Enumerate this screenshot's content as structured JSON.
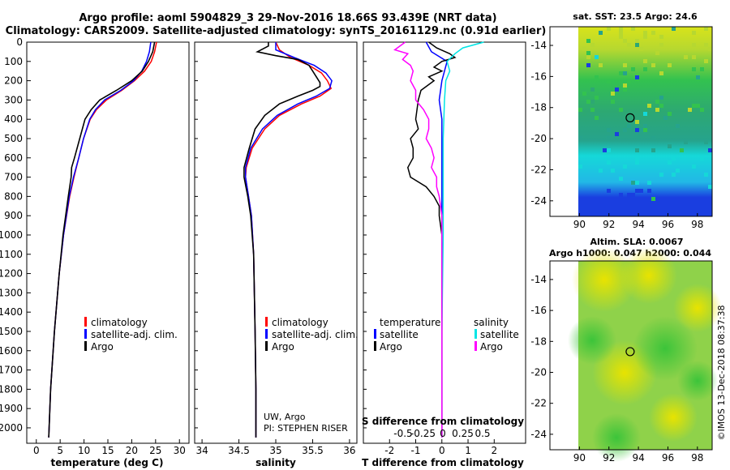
{
  "header": {
    "title_line1": "Argo profile: aoml 5904829_3 29-Nov-2016 18.66S 93.439E (NRT data)",
    "title_line2": "Climatology: CARS2009. Satellite-adjusted climatology: synTS_20161129.nc (0.91d earlier)"
  },
  "footer": {
    "credit": "UW, Argo",
    "pi": "PI: STEPHEN RISER",
    "stamp": "©IMOS 13-Dec-2018 08:37:38"
  },
  "colors": {
    "climatology": "#ff0000",
    "satellite": "#0000ff",
    "argo": "#000000",
    "sat_salinity": "#00e5e5",
    "argo_salinity": "#ff00ff"
  },
  "depth_axis": {
    "ticks": [
      0,
      100,
      200,
      300,
      400,
      500,
      600,
      700,
      800,
      900,
      1000,
      1100,
      1200,
      1300,
      1400,
      1500,
      1600,
      1700,
      1800,
      1900,
      2000
    ]
  },
  "chart_data": [
    {
      "type": "line",
      "id": "temperature",
      "xlabel": "temperature (deg C)",
      "ylabel": "depth (dbar)",
      "xlim": [
        -2,
        32
      ],
      "ylim": [
        2080,
        0
      ],
      "xticks": [
        0,
        5,
        10,
        15,
        20,
        25,
        30
      ],
      "series": [
        {
          "name": "climatology",
          "color": "#ff0000",
          "depth": [
            0,
            50,
            100,
            150,
            200,
            250,
            300,
            350,
            400,
            500,
            600,
            700,
            800,
            1000,
            1200,
            1500,
            1800,
            2050
          ],
          "values": [
            25.2,
            24.8,
            24.1,
            22.7,
            20.6,
            17.9,
            14.7,
            12.6,
            11.3,
            9.9,
            8.9,
            7.9,
            7.0,
            5.7,
            4.8,
            3.8,
            3.0,
            2.6
          ]
        },
        {
          "name": "satellite-adj. clim.",
          "color": "#0000ff",
          "depth": [
            0,
            50,
            100,
            150,
            200,
            250,
            300,
            350,
            400,
            500,
            600,
            700,
            800,
            1000,
            1200,
            1500,
            1800,
            2050
          ],
          "values": [
            24.0,
            23.7,
            23.1,
            22.1,
            20.4,
            17.7,
            14.3,
            12.4,
            11.2,
            9.9,
            8.9,
            7.8,
            6.9,
            5.7,
            4.8,
            3.8,
            3.0,
            2.6
          ]
        },
        {
          "name": "Argo",
          "color": "#000000",
          "depth": [
            0,
            50,
            100,
            150,
            200,
            250,
            300,
            350,
            400,
            500,
            600,
            650,
            700,
            800,
            1000,
            1200,
            1500,
            1800,
            2050
          ],
          "values": [
            24.8,
            24.4,
            23.5,
            22.2,
            20.0,
            16.8,
            13.3,
            11.5,
            10.2,
            9.1,
            8.0,
            7.4,
            7.3,
            6.7,
            5.6,
            4.8,
            3.8,
            3.0,
            2.6
          ]
        }
      ],
      "legend": [
        "climatology",
        "satellite-adj. clim.",
        "Argo"
      ]
    },
    {
      "type": "line",
      "id": "salinity",
      "xlabel": "salinity",
      "ylabel": "depth (dbar)",
      "xlim": [
        33.9,
        36.1
      ],
      "ylim": [
        2080,
        0
      ],
      "xticks": [
        34,
        34.5,
        35,
        35.5,
        36
      ],
      "series": [
        {
          "name": "climatology",
          "color": "#ff0000",
          "depth": [
            0,
            40,
            80,
            120,
            160,
            200,
            240,
            280,
            320,
            380,
            450,
            550,
            650,
            700,
            800,
            900,
            1100,
            1500,
            1800,
            2050
          ],
          "values": [
            35.0,
            35.05,
            35.2,
            35.45,
            35.62,
            35.7,
            35.75,
            35.6,
            35.35,
            35.05,
            34.85,
            34.68,
            34.6,
            34.59,
            34.63,
            34.67,
            34.7,
            34.72,
            34.73,
            34.73
          ]
        },
        {
          "name": "satellite-adj. clim.",
          "color": "#0000ff",
          "depth": [
            0,
            40,
            80,
            120,
            160,
            200,
            240,
            280,
            320,
            380,
            450,
            550,
            650,
            700,
            800,
            900,
            1100,
            1500,
            1800,
            2050
          ],
          "values": [
            35.0,
            35.0,
            35.25,
            35.52,
            35.68,
            35.76,
            35.73,
            35.55,
            35.3,
            35.02,
            34.82,
            34.66,
            34.59,
            34.59,
            34.63,
            34.67,
            34.7,
            34.72,
            34.73,
            34.73
          ]
        },
        {
          "name": "Argo",
          "color": "#000000",
          "depth": [
            0,
            20,
            50,
            70,
            90,
            120,
            150,
            180,
            210,
            230,
            250,
            280,
            320,
            380,
            450,
            550,
            650,
            700,
            720,
            800,
            900,
            1100,
            1500,
            1800,
            2050
          ],
          "values": [
            34.9,
            34.9,
            34.75,
            35.0,
            35.3,
            35.45,
            35.5,
            35.55,
            35.6,
            35.6,
            35.5,
            35.3,
            35.05,
            34.85,
            34.72,
            34.64,
            34.57,
            34.57,
            34.58,
            34.62,
            34.66,
            34.7,
            34.72,
            34.73,
            34.73
          ]
        }
      ],
      "legend": [
        "climatology",
        "satellite-adj. clim.",
        "Argo"
      ]
    },
    {
      "type": "line",
      "id": "difference",
      "xlabel": "T difference from climatology",
      "xlabel2": "S difference from climatology",
      "ylabel": "depth (dbar)",
      "xlim": [
        -3,
        3.2
      ],
      "ylim": [
        2080,
        0
      ],
      "xticks": [
        -2,
        -1,
        0,
        1,
        2
      ],
      "xticks_s": [
        -0.5,
        -0.25,
        0,
        0.25,
        0.5
      ],
      "series": [
        {
          "name": "temperature satellite",
          "color": "#0000ff",
          "depth": [
            0,
            50,
            100,
            150,
            200,
            300,
            400,
            600,
            800,
            1000,
            1500,
            2050
          ],
          "values": [
            -0.6,
            -0.4,
            0.2,
            0.1,
            0.0,
            -0.1,
            0.0,
            0.0,
            0.0,
            0.0,
            0.0,
            0.0
          ]
        },
        {
          "name": "temperature Argo",
          "color": "#000000",
          "depth": [
            0,
            30,
            60,
            80,
            100,
            130,
            150,
            180,
            200,
            250,
            300,
            400,
            450,
            500,
            550,
            600,
            650,
            700,
            750,
            800,
            850,
            900,
            1000,
            1500,
            2050
          ],
          "values": [
            -0.5,
            -0.2,
            0.3,
            0.5,
            0.0,
            -0.3,
            0.0,
            -0.5,
            -0.3,
            -0.8,
            -0.9,
            -1.0,
            -0.9,
            -1.2,
            -1.1,
            -1.1,
            -1.3,
            -1.2,
            -0.6,
            -0.3,
            -0.1,
            -0.1,
            0.0,
            0.0,
            0.0
          ]
        },
        {
          "name": "salinity satellite",
          "color": "#00e5e5",
          "depth": [
            0,
            30,
            60,
            100,
            150,
            200,
            300,
            500,
            800,
            1000,
            1500,
            2050
          ],
          "values": [
            1.6,
            0.8,
            0.5,
            0.2,
            0.3,
            0.15,
            0.1,
            0.05,
            0.05,
            0.05,
            0.0,
            0.0
          ]
        },
        {
          "name": "salinity Argo",
          "color": "#ff00ff",
          "depth": [
            0,
            40,
            60,
            90,
            120,
            150,
            200,
            250,
            300,
            350,
            400,
            450,
            500,
            550,
            600,
            650,
            700,
            750,
            800,
            900,
            1000,
            1500,
            2050
          ],
          "values": [
            -1.4,
            -1.8,
            -1.3,
            -1.5,
            -1.2,
            -1.1,
            -1.2,
            -1.0,
            -1.0,
            -0.7,
            -0.5,
            -0.5,
            -0.6,
            -0.4,
            -0.3,
            -0.4,
            -0.2,
            -0.2,
            -0.1,
            0.0,
            0.0,
            0.0,
            0.0
          ]
        }
      ],
      "legend_t": {
        "header": "temperature",
        "items": [
          "satellite",
          "Argo"
        ]
      },
      "legend_s": {
        "header": "salinity",
        "items": [
          "satellite",
          "Argo"
        ]
      }
    },
    {
      "type": "heatmap",
      "id": "sst_map",
      "title": "sat. SST: 23.5 Argo: 24.6",
      "xlim": [
        88,
        99
      ],
      "ylim": [
        -25,
        -12.8
      ],
      "xticks": [
        90,
        92,
        94,
        96,
        98
      ],
      "yticks": [
        -14,
        -16,
        -18,
        -20,
        -22,
        -24
      ],
      "data_xlim": [
        90,
        99
      ],
      "marker": {
        "lon": 93.439,
        "lat": -18.66
      }
    },
    {
      "type": "heatmap",
      "id": "sla_map",
      "title": "Altim. SLA: 0.0067",
      "subtitle": "Argo h1000: 0.047 h2000: 0.044",
      "xlim": [
        88,
        99
      ],
      "ylim": [
        -25,
        -12.8
      ],
      "xticks": [
        90,
        92,
        94,
        96,
        98
      ],
      "yticks": [
        -14,
        -16,
        -18,
        -20,
        -22,
        -24
      ],
      "data_xlim": [
        90,
        99
      ],
      "marker": {
        "lon": 93.439,
        "lat": -18.66
      }
    }
  ]
}
